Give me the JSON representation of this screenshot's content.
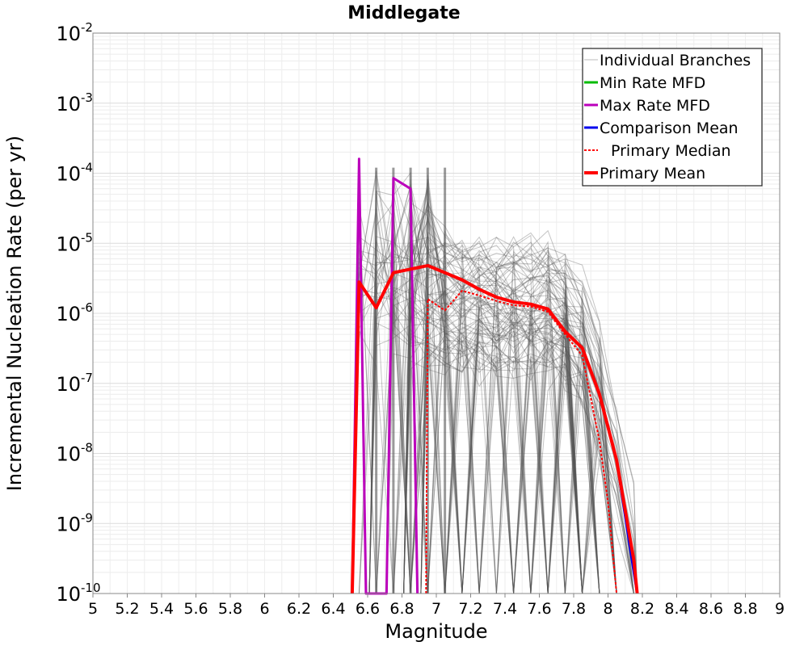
{
  "chart_data": {
    "type": "line",
    "title": "Middlegate",
    "xlabel": "Magnitude",
    "ylabel": "Incremental Nucleation Rate (per yr)",
    "xlim": [
      5,
      9
    ],
    "ylim": [
      1e-10,
      0.01
    ],
    "yscale": "log",
    "grid": true,
    "legend_position": "top-right",
    "x_ticks": [
      "5",
      "5.2",
      "5.4",
      "5.6",
      "5.8",
      "6",
      "6.2",
      "6.4",
      "6.6",
      "6.8",
      "7",
      "7.2",
      "7.4",
      "7.6",
      "7.8",
      "8",
      "8.2",
      "8.4",
      "8.6",
      "8.8",
      "9"
    ],
    "y_ticks": [
      {
        "base": "10",
        "exp": "-10",
        "value": 1e-10
      },
      {
        "base": "10",
        "exp": "-9",
        "value": 1e-09
      },
      {
        "base": "10",
        "exp": "-8",
        "value": 1e-08
      },
      {
        "base": "10",
        "exp": "-7",
        "value": 1e-07
      },
      {
        "base": "10",
        "exp": "-6",
        "value": 1e-06
      },
      {
        "base": "10",
        "exp": "-5",
        "value": 1e-05
      },
      {
        "base": "10",
        "exp": "-4",
        "value": 0.0001
      },
      {
        "base": "10",
        "exp": "-3",
        "value": 0.001
      },
      {
        "base": "10",
        "exp": "-2",
        "value": 0.01
      }
    ],
    "series": [
      {
        "name": "Individual Branches",
        "color": "#555555",
        "style": "solid",
        "description_only": true
      },
      {
        "name": "Min Rate MFD",
        "color": "#00bb00",
        "style": "solid",
        "x": [],
        "y": []
      },
      {
        "name": "Max Rate MFD",
        "color": "#bb00bb",
        "style": "solid",
        "x": [
          6.51,
          6.55,
          6.59,
          6.71,
          6.75,
          6.85,
          6.89
        ],
        "y": [
          1e-10,
          0.00016,
          1e-10,
          1e-10,
          8.5e-05,
          6e-05,
          1e-10
        ]
      },
      {
        "name": "Comparison Mean",
        "color": "#0000ee",
        "style": "solid",
        "x": [
          8.05,
          8.15,
          8.17
        ],
        "y": [
          8e-09,
          2e-10,
          1e-10
        ]
      },
      {
        "name": "Primary Median",
        "color": "#ff0000",
        "style": "dotted",
        "x": [
          6.94,
          6.95,
          7.05,
          7.15,
          7.25,
          7.35,
          7.45,
          7.55,
          7.65,
          7.75,
          7.85,
          7.95,
          8.0,
          8.05
        ],
        "y": [
          1e-10,
          1.6e-06,
          1.1e-06,
          2.1e-06,
          1.8e-06,
          1.5e-06,
          1.3e-06,
          1.25e-06,
          1.05e-06,
          5e-07,
          2.5e-07,
          1.5e-08,
          2e-09,
          1e-10
        ]
      },
      {
        "name": "Primary Mean",
        "color": "#ff0000",
        "style": "thick",
        "x": [
          6.51,
          6.55,
          6.65,
          6.75,
          6.95,
          7.05,
          7.15,
          7.25,
          7.35,
          7.45,
          7.55,
          7.65,
          7.75,
          7.85,
          7.95,
          8.05,
          8.15,
          8.17
        ],
        "y": [
          1e-10,
          2.8e-06,
          1.2e-06,
          3.8e-06,
          4.8e-06,
          3.8e-06,
          3e-06,
          2.2e-06,
          1.7e-06,
          1.45e-06,
          1.35e-06,
          1.15e-06,
          5.5e-07,
          3.2e-07,
          7e-08,
          8e-09,
          3e-10,
          1e-10
        ]
      }
    ]
  }
}
